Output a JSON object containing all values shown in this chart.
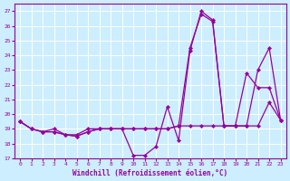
{
  "xlabel": "Windchill (Refroidissement éolien,°C)",
  "xlim": [
    -0.5,
    23.5
  ],
  "ylim": [
    17,
    27.5
  ],
  "yticks": [
    17,
    18,
    19,
    20,
    21,
    22,
    23,
    24,
    25,
    26,
    27
  ],
  "xticks": [
    0,
    1,
    2,
    3,
    4,
    5,
    6,
    7,
    8,
    9,
    10,
    11,
    12,
    13,
    14,
    15,
    16,
    17,
    18,
    19,
    20,
    21,
    22,
    23
  ],
  "bg_color": "#cceeff",
  "line_color": "#990099",
  "grid_color": "#ffffff",
  "line1_x": [
    0,
    1,
    2,
    3,
    4,
    5,
    6,
    7,
    8,
    9,
    10,
    11,
    12,
    13,
    14,
    15,
    16,
    17,
    18,
    19,
    20,
    21,
    22,
    23
  ],
  "line1_y": [
    19.5,
    19.0,
    18.8,
    18.8,
    18.6,
    18.5,
    18.8,
    19.0,
    19.0,
    19.0,
    17.2,
    17.2,
    17.8,
    20.5,
    18.2,
    24.3,
    27.0,
    26.4,
    19.2,
    19.2,
    22.8,
    21.8,
    21.8,
    19.6
  ],
  "line2_x": [
    0,
    1,
    2,
    3,
    4,
    5,
    6,
    7,
    8,
    9,
    10,
    11,
    12,
    13,
    14,
    15,
    16,
    17,
    18,
    19,
    20,
    21,
    22,
    23
  ],
  "line2_y": [
    19.5,
    19.0,
    18.8,
    19.0,
    18.6,
    18.6,
    19.0,
    19.0,
    19.0,
    19.0,
    19.0,
    19.0,
    19.0,
    19.0,
    19.2,
    24.5,
    26.8,
    26.3,
    19.2,
    19.2,
    19.2,
    23.0,
    24.5,
    19.6
  ],
  "line3_x": [
    0,
    1,
    2,
    3,
    4,
    5,
    6,
    7,
    8,
    9,
    10,
    11,
    12,
    13,
    14,
    15,
    16,
    17,
    18,
    19,
    20,
    21,
    22,
    23
  ],
  "line3_y": [
    19.5,
    19.0,
    18.8,
    18.8,
    18.6,
    18.5,
    18.8,
    19.0,
    19.0,
    19.0,
    19.0,
    19.0,
    19.0,
    19.0,
    19.2,
    19.2,
    19.2,
    19.2,
    19.2,
    19.2,
    19.2,
    19.2,
    20.8,
    19.6
  ]
}
